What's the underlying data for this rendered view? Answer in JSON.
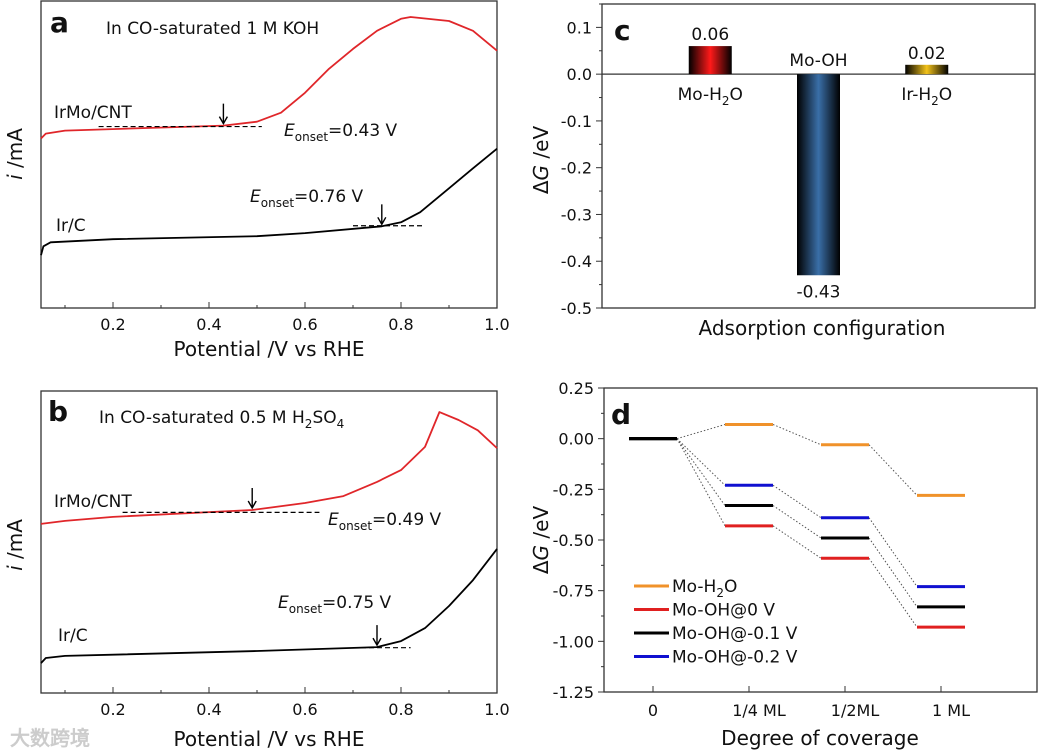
{
  "chart_data": [
    {
      "panel": "a",
      "type": "line",
      "title": "In CO-saturated 1 M KOH",
      "xlabel": "Potential /V vs RHE",
      "ylabel": {
        "italic": "i",
        "rest": " /mA"
      },
      "xlim": [
        0.05,
        1.0
      ],
      "ylim": [
        0,
        100
      ],
      "xticks": [
        "0.2",
        "0.4",
        "0.6",
        "0.8",
        "1.0"
      ],
      "yticks": [],
      "series": [
        {
          "name": "IrMo/CNT",
          "color": "#e0262a",
          "x": [
            0.05,
            0.06,
            0.1,
            0.43,
            0.5,
            0.55,
            0.6,
            0.65,
            0.7,
            0.75,
            0.8,
            0.82,
            0.9,
            0.95,
            1.0
          ],
          "y": [
            55.2,
            56.8,
            57.8,
            59.4,
            60.7,
            63.6,
            70.1,
            77.9,
            84.4,
            90.3,
            94.2,
            94.8,
            93.5,
            90.3,
            83.8
          ],
          "onset": {
            "value": 0.43,
            "label_E": "E",
            "label_sub": "onset",
            "label_rest": "=0.43 V"
          },
          "baseline": {
            "x": [
              0.17,
              0.51
            ],
            "y": 59.1
          }
        },
        {
          "name": "Ir/C",
          "color": "#000000",
          "x": [
            0.05,
            0.055,
            0.07,
            0.2,
            0.5,
            0.6,
            0.76,
            0.8,
            0.84,
            0.9,
            0.95,
            1.0
          ],
          "y": [
            17.2,
            20.1,
            21.4,
            22.4,
            23.4,
            24.4,
            26.6,
            27.9,
            31.2,
            39.0,
            45.5,
            51.9
          ],
          "onset": {
            "value": 0.76,
            "label_E": "E",
            "label_sub": "onset",
            "label_rest": "=0.76 V"
          },
          "baseline": {
            "x": [
              0.7,
              0.85
            ],
            "y": 26.8
          }
        }
      ]
    },
    {
      "panel": "b",
      "type": "line",
      "title": {
        "pre": "In CO-saturated 0.5 M H",
        "sub1": "2",
        "mid": "SO",
        "sub2": "4"
      },
      "xlabel": "Potential /V vs RHE",
      "ylabel": {
        "italic": "i",
        "rest": " /mA"
      },
      "xlim": [
        0.05,
        1.0
      ],
      "ylim": [
        0,
        100
      ],
      "xticks": [
        "0.2",
        "0.4",
        "0.6",
        "0.8",
        "1.0"
      ],
      "yticks": [],
      "series": [
        {
          "name": "IrMo/CNT",
          "color": "#e0262a",
          "x": [
            0.05,
            0.1,
            0.2,
            0.49,
            0.6,
            0.68,
            0.75,
            0.8,
            0.85,
            0.88,
            0.92,
            0.96,
            1.0
          ],
          "y": [
            56,
            57,
            58.3,
            60.6,
            62.9,
            65.2,
            69.9,
            73.8,
            81.5,
            93,
            90.4,
            87,
            81.1
          ],
          "onset": {
            "value": 0.49,
            "label_E": "E",
            "label_sub": "onset",
            "label_rest": "=0.49 V"
          },
          "baseline": {
            "x": [
              0.22,
              0.63
            ],
            "y": 59.8
          }
        },
        {
          "name": "Ir/C",
          "color": "#000000",
          "x": [
            0.05,
            0.06,
            0.1,
            0.5,
            0.75,
            0.8,
            0.85,
            0.9,
            0.95,
            1.0
          ],
          "y": [
            9.9,
            11.6,
            12.3,
            13.9,
            15.2,
            17.2,
            21.5,
            28.8,
            37.4,
            47.7
          ],
          "onset": {
            "value": 0.75,
            "label_E": "E",
            "label_sub": "onset",
            "label_rest": "=0.75 V"
          },
          "baseline": {
            "x": [
              0.7,
              0.82
            ],
            "y": 15.0
          }
        }
      ]
    },
    {
      "panel": "c",
      "type": "bar",
      "categories": [
        {
          "pre": "Mo-H",
          "sub": "2",
          "post": "O"
        },
        {
          "pre": "Mo-OH",
          "sub": "",
          "post": ""
        },
        {
          "pre": "Ir-H",
          "sub": "2",
          "post": "O"
        }
      ],
      "values": [
        0.06,
        -0.43,
        0.02
      ],
      "value_labels": [
        "0.06",
        "-0.43",
        "0.02"
      ],
      "colors": [
        "#ff1a1a",
        "#3a6fa8",
        "#f2c21a"
      ],
      "xlabel": "Adsorption configuration",
      "ylabel": {
        "pre": "Δ",
        "italic": "G",
        "rest": " /eV"
      },
      "ylim": [
        -0.5,
        0.15
      ],
      "yticks": [
        "-0.5",
        "-0.4",
        "-0.3",
        "-0.2",
        "-0.1",
        "0.0",
        "0.1"
      ]
    },
    {
      "panel": "d",
      "type": "line",
      "categories": [
        "0",
        "1/4 ML",
        "1/2ML",
        "1 ML"
      ],
      "xlabel": "Degree of coverage",
      "ylabel": {
        "pre": "Δ",
        "italic": "G",
        "rest": " /eV"
      },
      "ylim": [
        -1.25,
        0.25
      ],
      "yticks": [
        "0.25",
        "0.00",
        "-0.25",
        "-0.50",
        "-0.75",
        "-1.00",
        "-1.25"
      ],
      "legend": "bottom-left",
      "series": [
        {
          "name": {
            "pre": "Mo-H",
            "sub": "2",
            "post": "O"
          },
          "color": "#f0922a",
          "values": [
            0,
            0.07,
            -0.03,
            -0.28
          ]
        },
        {
          "name": {
            "pre": "Mo-OH@0 V",
            "sub": "",
            "post": ""
          },
          "color": "#e02020",
          "values": [
            0,
            -0.43,
            -0.59,
            -0.93
          ]
        },
        {
          "name": {
            "pre": "Mo-OH@-0.1 V",
            "sub": "",
            "post": ""
          },
          "color": "#000000",
          "values": [
            0,
            -0.33,
            -0.49,
            -0.83
          ]
        },
        {
          "name": {
            "pre": "Mo-OH@-0.2 V",
            "sub": "",
            "post": ""
          },
          "color": "#1010d0",
          "values": [
            0,
            -0.23,
            -0.39,
            -0.73
          ]
        }
      ]
    }
  ],
  "panel_letters": [
    "a",
    "b",
    "c",
    "d"
  ],
  "watermark": "大数跨境"
}
